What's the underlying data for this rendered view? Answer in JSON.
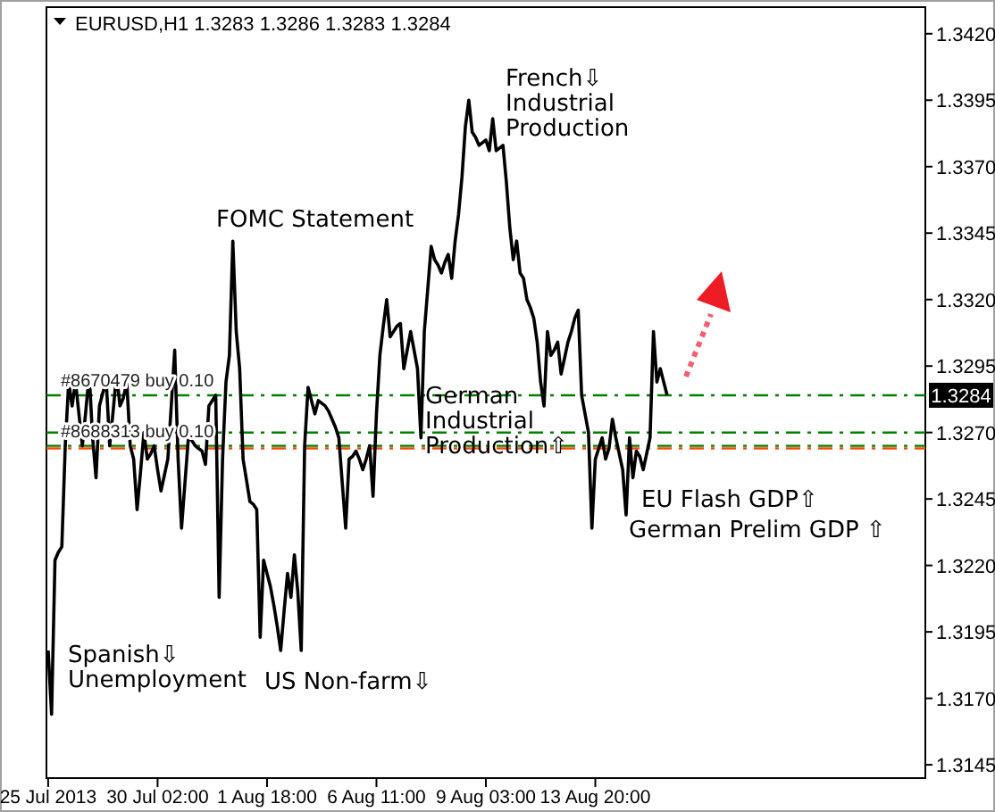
{
  "chart_data": {
    "type": "line",
    "title": "EURUSD,H1  1.3283 1.3286 1.3283 1.3284",
    "categories": [
      "25 Jul 2013",
      null,
      null,
      null,
      null,
      null,
      null,
      null,
      null,
      null,
      null,
      null,
      null,
      null,
      null,
      null,
      null,
      null,
      null,
      null,
      null,
      null,
      null,
      null,
      null,
      null,
      null,
      null,
      null,
      null,
      null,
      null,
      "30 Jul 02:00",
      null,
      null,
      null,
      null,
      null,
      null,
      null,
      null,
      null,
      null,
      null,
      null,
      null,
      null,
      null,
      null,
      null,
      null,
      null,
      null,
      null,
      null,
      null,
      null,
      null,
      null,
      null,
      null,
      null,
      null,
      null,
      "1 Aug 18:00",
      null,
      null,
      null,
      null,
      null,
      null,
      null,
      null,
      null,
      null,
      null,
      null,
      null,
      null,
      null,
      null,
      null,
      null,
      null,
      null,
      null,
      null,
      null,
      null,
      null,
      null,
      null,
      null,
      null,
      null,
      null,
      "6 Aug 11:00",
      null,
      null,
      null,
      null,
      null,
      null,
      null,
      null,
      null,
      null,
      null,
      null,
      null,
      null,
      null,
      null,
      null,
      null,
      null,
      null,
      null,
      null,
      null,
      null,
      null,
      null,
      null,
      null,
      null,
      null,
      null,
      "9 Aug 03:00",
      null,
      null,
      null,
      null,
      null,
      null,
      null,
      null,
      null,
      null,
      null,
      null,
      null,
      null,
      null,
      null,
      null,
      null,
      null,
      null,
      null,
      null,
      null,
      null,
      null,
      null,
      null,
      null,
      null,
      null,
      null,
      "13 Aug 20:00",
      null,
      null,
      null,
      null,
      null,
      null,
      null,
      null,
      null,
      null,
      null,
      null,
      null,
      null,
      null,
      null,
      null,
      null,
      null,
      null,
      null,
      null,
      null,
      null,
      null,
      null,
      null,
      null,
      null,
      null,
      null,
      null,
      null,
      null,
      null,
      null,
      null,
      null,
      null,
      null,
      null,
      null,
      null,
      null,
      null,
      null,
      null,
      null,
      null,
      null,
      null,
      null,
      null,
      null,
      null,
      null,
      null,
      null,
      null,
      null,
      null,
      null,
      null,
      null,
      null,
      null,
      null,
      null,
      null,
      null,
      null,
      null,
      null,
      null,
      null,
      null,
      null,
      null,
      null,
      null,
      null,
      null,
      null,
      null,
      null,
      null,
      null,
      null,
      null,
      null,
      null,
      null,
      null,
      null,
      null,
      null
    ],
    "series": [
      {
        "color": "#000000",
        "values": [
          1.3188,
          1.3164,
          1.3222,
          1.3225,
          1.3227,
          1.3265,
          1.3289,
          1.328,
          1.3289,
          1.3277,
          1.3265,
          1.3278,
          1.3292,
          1.3268,
          1.3253,
          1.328,
          1.3285,
          1.3289,
          1.3265,
          1.3278,
          1.3292,
          1.328,
          1.3283,
          1.3289,
          1.3265,
          1.326,
          1.3241,
          1.3255,
          1.327,
          1.326,
          1.3262,
          1.3265,
          1.3256,
          1.3248,
          1.3254,
          1.326,
          1.328,
          1.3301,
          1.326,
          1.3234,
          1.3251,
          1.3268,
          1.3267,
          1.3265,
          1.3264,
          1.3263,
          1.3258,
          1.328,
          1.3282,
          1.3284,
          1.3208,
          1.326,
          1.3289,
          1.3299,
          1.3342,
          1.3308,
          1.3294,
          1.326,
          1.3252,
          1.3244,
          1.3243,
          1.3241,
          1.3193,
          1.3222,
          1.3217,
          1.3212,
          1.3205,
          1.3197,
          1.3188,
          1.3203,
          1.3217,
          1.3208,
          1.3224,
          1.321,
          1.3188,
          1.3265,
          1.3287,
          1.3282,
          1.3277,
          1.3282,
          1.3281,
          1.328,
          1.3278,
          1.3275,
          1.3272,
          1.3268,
          1.3251,
          1.3234,
          1.326,
          1.3261,
          1.3263,
          1.326,
          1.3256,
          1.326,
          1.3265,
          1.3246,
          1.3277,
          1.3299,
          1.331,
          1.332,
          1.3306,
          1.3308,
          1.331,
          1.3311,
          1.3294,
          1.3301,
          1.3308,
          1.3301,
          1.3294,
          1.3268,
          1.3308,
          1.3324,
          1.334,
          1.3335,
          1.3333,
          1.333,
          1.3334,
          1.3337,
          1.3328,
          1.3342,
          1.3352,
          1.3366,
          1.3385,
          1.3395,
          1.3383,
          1.3381,
          1.3378,
          1.3379,
          1.338,
          1.3376,
          1.3388,
          1.3376,
          1.3377,
          1.3378,
          1.3364,
          1.3347,
          1.3335,
          1.3342,
          1.333,
          1.3328,
          1.332,
          1.3317,
          1.3313,
          1.3304,
          1.3289,
          1.328,
          1.3308,
          1.3299,
          1.3301,
          1.3304,
          1.3292,
          1.3298,
          1.3304,
          1.3308,
          1.3313,
          1.3316,
          1.3284,
          1.3277,
          1.327,
          1.3234,
          1.326,
          1.3264,
          1.3268,
          1.326,
          1.3264,
          1.3275,
          1.3268,
          1.3262,
          1.3256,
          1.3239,
          1.3268,
          1.3253,
          1.3263,
          1.3261,
          1.3256,
          1.3262,
          1.3268,
          1.3308,
          1.3289,
          1.3294,
          1.3289,
          1.3284,
          null,
          null,
          null,
          null,
          null,
          null,
          null,
          null,
          null,
          null,
          null,
          null,
          null,
          null,
          null,
          null,
          null,
          null,
          null,
          null,
          null,
          null,
          null,
          null,
          null,
          null,
          null,
          null,
          null,
          null,
          null,
          null,
          null,
          null,
          null,
          null,
          null,
          null,
          null,
          null,
          null,
          null,
          null,
          null,
          null,
          null,
          null,
          null,
          null,
          null,
          null,
          null,
          null,
          null,
          null,
          null,
          null,
          null,
          null,
          null,
          null,
          null,
          null,
          null,
          null,
          null,
          null,
          null,
          null,
          null,
          null,
          null,
          null,
          null,
          null
        ]
      }
    ],
    "ylim": [
      1.314,
      1.343
    ],
    "yticks": [
      {
        "value": 1.342,
        "label": "1.3420"
      },
      1.3395,
      {
        "value": 1.337,
        "label": "1.3370"
      },
      1.3345,
      {
        "value": 1.332,
        "label": "1.3320"
      },
      1.3295,
      {
        "value": 1.327,
        "label": "1.3270"
      },
      1.3245,
      {
        "value": 1.322,
        "label": "1.3220"
      },
      1.3195,
      {
        "value": 1.317,
        "label": "1.3170"
      },
      1.3145
    ],
    "ref_lines": [
      {
        "axis": "y",
        "value": 1.3284,
        "label": "#8670479 buy 0.10",
        "color": "#008000",
        "line_style": "dashed"
      },
      {
        "axis": "y",
        "value": 1.327,
        "label": null,
        "color": "#008000",
        "line_style": "dashed"
      },
      {
        "axis": "y",
        "value": 1.3265,
        "label": "#8688313 buy 0.10",
        "color": "#008000",
        "line_style": "dashed"
      },
      {
        "axis": "y",
        "value": 1.3264,
        "color": "#ff4500",
        "line_style": "dashed"
      }
    ],
    "annotations": [
      "French⇩\nIndustrial\nProduction",
      "FOMC Statement",
      "German\nIndustrial\nProduction⇧",
      "EU Flash GDP⇧",
      "German Prelim GDP ⇧",
      "Spanish⇩\nUnemployment",
      "US Non-farm⇩",
      {
        "text": "1.3284",
        "y": 1.3284
      }
    ],
    "grid": false,
    "marker": "none",
    "line_style": "solid"
  }
}
